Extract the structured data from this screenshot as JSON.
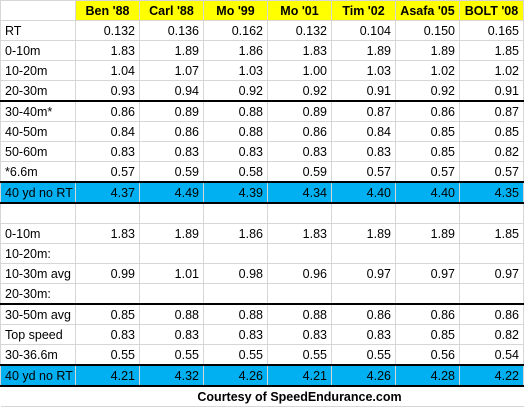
{
  "columns": [
    "",
    "Ben '88",
    "Carl '88",
    "Mo '99",
    "Mo '01",
    "Tim '02",
    "Asafa '05",
    "BOLT '08"
  ],
  "rows": [
    {
      "label": "RT",
      "values": [
        "0.132",
        "0.136",
        "0.162",
        "0.132",
        "0.104",
        "0.150",
        "0.165"
      ],
      "style": "normal"
    },
    {
      "label": "0-10m",
      "values": [
        "1.83",
        "1.89",
        "1.86",
        "1.83",
        "1.89",
        "1.89",
        "1.85"
      ],
      "style": "normal"
    },
    {
      "label": "10-20m",
      "values": [
        "1.04",
        "1.07",
        "1.03",
        "1.00",
        "1.03",
        "1.02",
        "1.02"
      ],
      "style": "normal"
    },
    {
      "label": "20-30m",
      "values": [
        "0.93",
        "0.94",
        "0.92",
        "0.92",
        "0.91",
        "0.92",
        "0.91"
      ],
      "style": "normal"
    },
    {
      "label": "30-40m*",
      "values": [
        "0.86",
        "0.89",
        "0.88",
        "0.89",
        "0.87",
        "0.86",
        "0.87"
      ],
      "style": "thick-top"
    },
    {
      "label": "40-50m",
      "values": [
        "0.84",
        "0.86",
        "0.88",
        "0.86",
        "0.84",
        "0.85",
        "0.85"
      ],
      "style": "normal"
    },
    {
      "label": "50-60m",
      "values": [
        "0.83",
        "0.83",
        "0.83",
        "0.83",
        "0.83",
        "0.85",
        "0.82"
      ],
      "style": "normal"
    },
    {
      "label": "*6.6m",
      "values": [
        "0.57",
        "0.59",
        "0.58",
        "0.59",
        "0.57",
        "0.57",
        "0.57"
      ],
      "style": "normal"
    },
    {
      "label": "40 yd no RT",
      "values": [
        "4.37",
        "4.49",
        "4.39",
        "4.34",
        "4.40",
        "4.40",
        "4.35"
      ],
      "style": "highlight"
    },
    {
      "label": "",
      "values": [
        "",
        "",
        "",
        "",
        "",
        "",
        ""
      ],
      "style": "blank"
    },
    {
      "label": "0-10m",
      "values": [
        "1.83",
        "1.89",
        "1.86",
        "1.83",
        "1.89",
        "1.89",
        "1.85"
      ],
      "style": "normal"
    },
    {
      "label": "10-20m:",
      "values": [
        "",
        "",
        "",
        "",
        "",
        "",
        ""
      ],
      "style": "normal"
    },
    {
      "label": "10-30m avg",
      "values": [
        "0.99",
        "1.01",
        "0.98",
        "0.96",
        "0.97",
        "0.97",
        "0.97"
      ],
      "style": "normal"
    },
    {
      "label": "20-30m:",
      "values": [
        "",
        "",
        "",
        "",
        "",
        "",
        ""
      ],
      "style": "normal"
    },
    {
      "label": "30-50m avg",
      "values": [
        "0.85",
        "0.88",
        "0.88",
        "0.88",
        "0.86",
        "0.86",
        "0.86"
      ],
      "style": "thick-top"
    },
    {
      "label": "Top speed",
      "values": [
        "0.83",
        "0.83",
        "0.83",
        "0.83",
        "0.83",
        "0.85",
        "0.82"
      ],
      "style": "normal"
    },
    {
      "label": "30-36.6m",
      "values": [
        "0.55",
        "0.55",
        "0.55",
        "0.55",
        "0.55",
        "0.56",
        "0.54"
      ],
      "style": "normal"
    },
    {
      "label": "40 yd no RT",
      "values": [
        "4.21",
        "4.32",
        "4.26",
        "4.21",
        "4.26",
        "4.28",
        "4.22"
      ],
      "style": "highlight"
    }
  ],
  "footer": "Courtesy of SpeedEndurance.com",
  "colors": {
    "header_bg": "#ffff00",
    "highlight_bg": "#00b0f0"
  }
}
